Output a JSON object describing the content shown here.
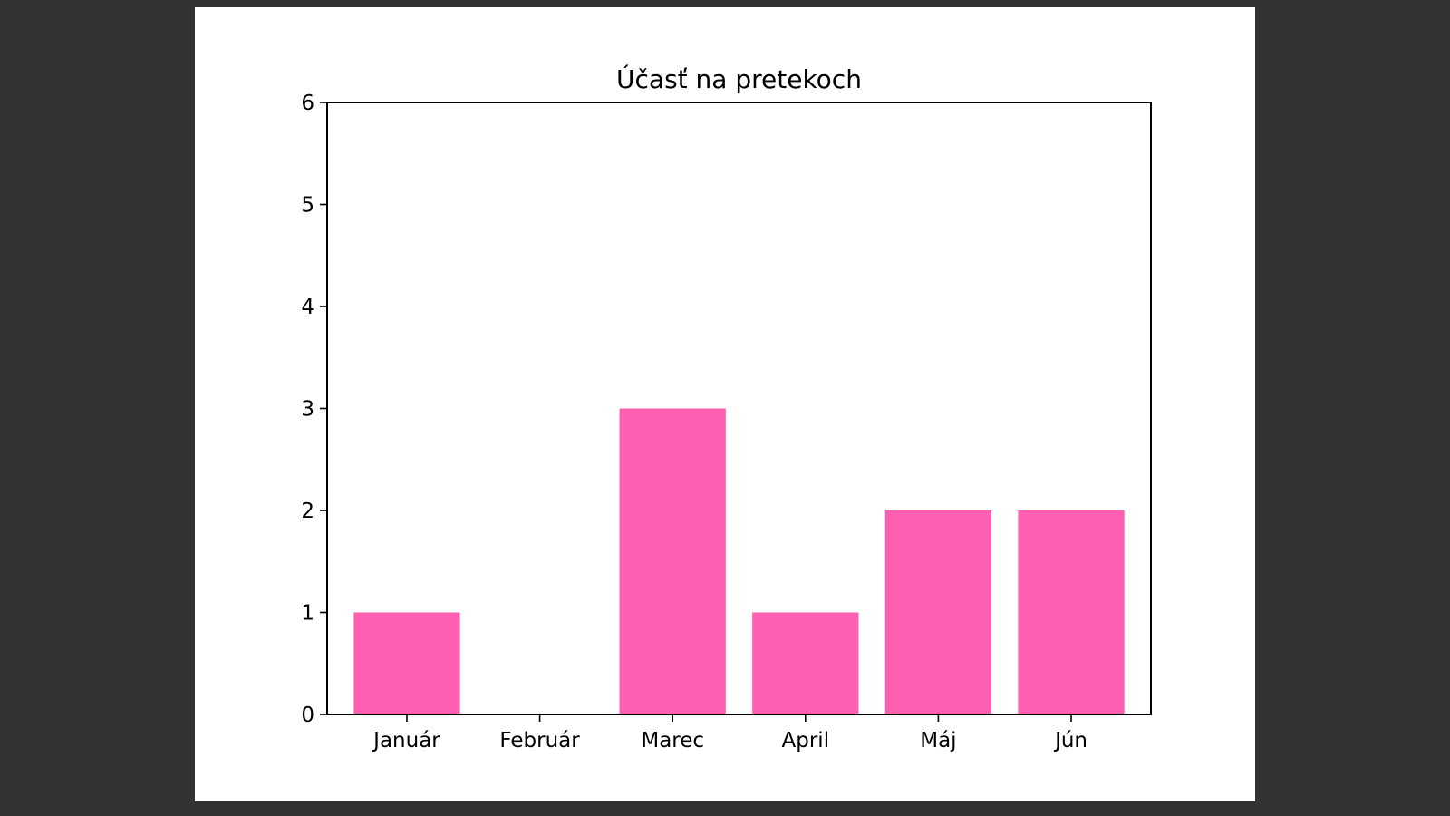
{
  "colors": {
    "bar": "#ff5fb1",
    "background": "#333333",
    "figure": "#ffffff",
    "axis": "#000000"
  },
  "chart_data": {
    "type": "bar",
    "title": "Účasť na pretekoch",
    "xlabel": "",
    "ylabel": "",
    "categories": [
      "Január",
      "Február",
      "Marec",
      "April",
      "Máj",
      "Jún"
    ],
    "values": [
      1,
      0,
      3,
      1,
      2,
      2
    ],
    "ylim": [
      0,
      6
    ],
    "yticks": [
      0,
      1,
      2,
      3,
      4,
      5,
      6
    ],
    "grid": false,
    "legend": "none"
  }
}
